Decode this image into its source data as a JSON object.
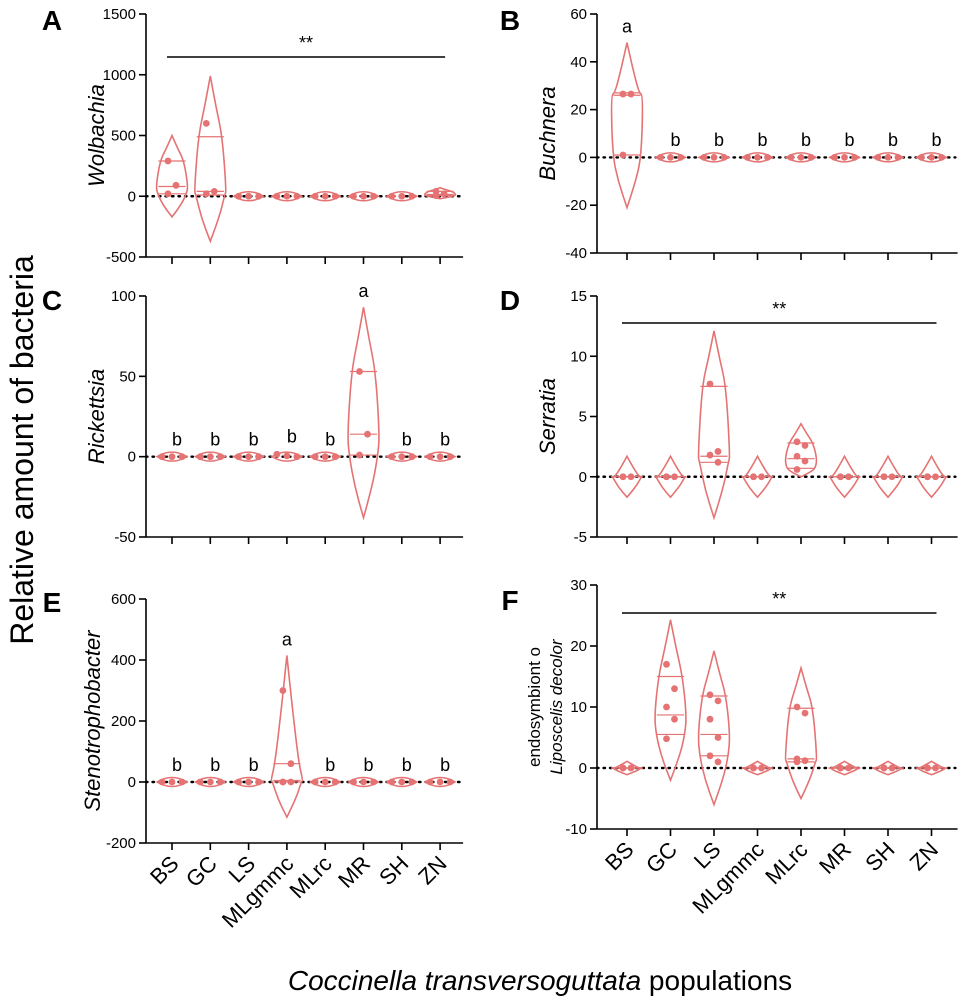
{
  "figure": {
    "y_label": "Relative amount of bacteria",
    "x_label_italic": "Coccinella transversoguttata",
    "x_label_rest": " populations",
    "violin_color": "#e57373",
    "categories": [
      "BS",
      "GC",
      "LS",
      "MLgmmc",
      "MLrc",
      "MR",
      "SH",
      "ZN"
    ]
  },
  "chart_data": [
    {
      "panel": "A",
      "type": "violin",
      "ylabel": "Wolbachia",
      "ylabel_italic": "Wolbachia",
      "ylim": [
        -500,
        1500
      ],
      "ticks": [
        1500,
        1000,
        500,
        0,
        -500
      ],
      "bracket": "**",
      "groups": [
        {
          "category": "BS",
          "median": 80,
          "q1": 20,
          "q3": 290,
          "min": -170,
          "max": 500,
          "points": [
            290,
            90,
            20
          ]
        },
        {
          "category": "GC",
          "median": 40,
          "q1": 10,
          "q3": 490,
          "min": -370,
          "max": 990,
          "points": [
            600,
            40,
            20
          ]
        },
        {
          "category": "LS",
          "median": 0,
          "q1": 0,
          "q3": 0,
          "min": -10,
          "max": 10,
          "points": [
            0,
            0,
            0
          ]
        },
        {
          "category": "MLgmmc",
          "median": 0,
          "q1": 0,
          "q3": 0,
          "min": -10,
          "max": 10,
          "points": [
            0,
            0,
            0
          ]
        },
        {
          "category": "MLrc",
          "median": 0,
          "q1": 0,
          "q3": 0,
          "min": -10,
          "max": 10,
          "points": [
            0,
            0,
            0
          ]
        },
        {
          "category": "MR",
          "median": 0,
          "q1": 0,
          "q3": 0,
          "min": -10,
          "max": 10,
          "points": [
            0,
            0,
            0
          ]
        },
        {
          "category": "SH",
          "median": 0,
          "q1": 0,
          "q3": 0,
          "min": -10,
          "max": 10,
          "points": [
            0,
            0,
            0
          ]
        },
        {
          "category": "ZN",
          "median": 15,
          "q1": 5,
          "q3": 40,
          "min": -20,
          "max": 70,
          "points": [
            40,
            20,
            5
          ]
        }
      ]
    },
    {
      "panel": "B",
      "type": "violin",
      "ylabel": "Buchnera",
      "ylabel_italic": "Buchnera",
      "ylim": [
        -40,
        60
      ],
      "ticks": [
        60,
        40,
        20,
        0,
        -20,
        -40
      ],
      "groups": [
        {
          "category": "BS",
          "median": 26,
          "q1": 1,
          "q3": 27,
          "min": -21,
          "max": 48,
          "points": [
            26.5,
            26.5,
            1
          ],
          "letter": "a"
        },
        {
          "category": "GC",
          "median": 0,
          "q1": 0,
          "q3": 0,
          "min": -0.6,
          "max": 0.6,
          "points": [
            0,
            0,
            0
          ],
          "letter": "b"
        },
        {
          "category": "LS",
          "median": 0,
          "q1": 0,
          "q3": 0,
          "min": -0.6,
          "max": 0.6,
          "points": [
            0,
            0,
            0
          ],
          "letter": "b"
        },
        {
          "category": "MLgmmc",
          "median": 0,
          "q1": 0,
          "q3": 0,
          "min": -0.6,
          "max": 0.6,
          "points": [
            0,
            0,
            0
          ],
          "letter": "b"
        },
        {
          "category": "MLrc",
          "median": 0,
          "q1": 0,
          "q3": 0,
          "min": -0.6,
          "max": 0.6,
          "points": [
            0,
            0,
            0
          ],
          "letter": "b"
        },
        {
          "category": "MR",
          "median": 0,
          "q1": 0,
          "q3": 0,
          "min": -0.6,
          "max": 0.6,
          "points": [
            0,
            0,
            0
          ],
          "letter": "b"
        },
        {
          "category": "SH",
          "median": 0,
          "q1": 0,
          "q3": 0,
          "min": -0.6,
          "max": 0.6,
          "points": [
            0,
            0,
            0
          ],
          "letter": "b"
        },
        {
          "category": "ZN",
          "median": 0,
          "q1": 0,
          "q3": 0,
          "min": -0.6,
          "max": 0.6,
          "points": [
            0,
            0,
            0
          ],
          "letter": "b"
        }
      ]
    },
    {
      "panel": "C",
      "type": "violin",
      "ylabel": "Rickettsia",
      "ylabel_italic": "Rickettsia",
      "ylim": [
        -50,
        100
      ],
      "ticks": [
        100,
        50,
        0,
        -50
      ],
      "groups": [
        {
          "category": "BS",
          "median": 0,
          "q1": 0,
          "q3": 0,
          "min": -0.8,
          "max": 0.8,
          "points": [
            0,
            0,
            0
          ],
          "letter": "b"
        },
        {
          "category": "GC",
          "median": 0,
          "q1": 0,
          "q3": 0,
          "min": -0.8,
          "max": 0.8,
          "points": [
            0,
            0,
            0
          ],
          "letter": "b"
        },
        {
          "category": "LS",
          "median": 0,
          "q1": 0,
          "q3": 0,
          "min": -0.8,
          "max": 0.8,
          "points": [
            0,
            0,
            0
          ],
          "letter": "b"
        },
        {
          "category": "MLgmmc",
          "median": 0.5,
          "q1": 0,
          "q3": 1,
          "min": -0.8,
          "max": 2.5,
          "points": [
            1.5,
            0.5,
            0
          ],
          "letter": "b"
        },
        {
          "category": "MLrc",
          "median": 0,
          "q1": 0,
          "q3": 0,
          "min": -0.8,
          "max": 0.8,
          "points": [
            0,
            0,
            0
          ],
          "letter": "b"
        },
        {
          "category": "MR",
          "median": 14,
          "q1": 1,
          "q3": 53,
          "min": -38,
          "max": 93,
          "points": [
            53,
            14,
            1
          ],
          "letter": "a"
        },
        {
          "category": "SH",
          "median": 0,
          "q1": 0,
          "q3": 0,
          "min": -0.8,
          "max": 0.8,
          "points": [
            0,
            0,
            0
          ],
          "letter": "b"
        },
        {
          "category": "ZN",
          "median": 0,
          "q1": 0,
          "q3": 0,
          "min": -0.8,
          "max": 0.8,
          "points": [
            0,
            0,
            0
          ],
          "letter": "b"
        }
      ]
    },
    {
      "panel": "D",
      "type": "violin",
      "ylabel": "Serratia",
      "ylabel_italic": "Serratia",
      "ylim": [
        -5,
        15
      ],
      "ticks": [
        15,
        10,
        5,
        0,
        -5
      ],
      "bracket": "**",
      "groups": [
        {
          "category": "BS",
          "median": 0,
          "q1": 0,
          "q3": 0,
          "min": -1.7,
          "max": 1.7,
          "points": [
            0,
            0,
            0
          ]
        },
        {
          "category": "GC",
          "median": 0,
          "q1": 0,
          "q3": 0,
          "min": -1.7,
          "max": 1.7,
          "points": [
            0,
            0,
            0
          ]
        },
        {
          "category": "LS",
          "median": 1.7,
          "q1": 1.2,
          "q3": 7.5,
          "min": -3.4,
          "max": 12.1,
          "points": [
            7.7,
            2.1,
            1.8,
            1.2
          ]
        },
        {
          "category": "MLgmmc",
          "median": 0,
          "q1": 0,
          "q3": 0,
          "min": -1.7,
          "max": 1.7,
          "points": [
            0,
            0,
            0
          ]
        },
        {
          "category": "MLrc",
          "median": 1.5,
          "q1": 0.7,
          "q3": 2.8,
          "min": 0,
          "max": 4.4,
          "points": [
            2.9,
            2.6,
            1.7,
            1.3,
            0.6
          ]
        },
        {
          "category": "MR",
          "median": 0,
          "q1": 0,
          "q3": 0,
          "min": -1.7,
          "max": 1.7,
          "points": [
            0,
            0,
            0
          ]
        },
        {
          "category": "SH",
          "median": 0,
          "q1": 0,
          "q3": 0,
          "min": -1.7,
          "max": 1.7,
          "points": [
            0,
            0,
            0
          ]
        },
        {
          "category": "ZN",
          "median": 0,
          "q1": 0,
          "q3": 0,
          "min": -1.7,
          "max": 1.7,
          "points": [
            0,
            0,
            0
          ]
        }
      ]
    },
    {
      "panel": "E",
      "type": "violin",
      "ylabel": "Stenotrophobacter",
      "ylabel_italic": "Stenotrophobacter",
      "ylim": [
        -200,
        600
      ],
      "ticks": [
        600,
        400,
        200,
        0,
        -200
      ],
      "groups": [
        {
          "category": "BS",
          "median": 0,
          "q1": 0,
          "q3": 0,
          "min": -3,
          "max": 3,
          "points": [
            0,
            0,
            0
          ],
          "letter": "b"
        },
        {
          "category": "GC",
          "median": 0,
          "q1": 0,
          "q3": 0,
          "min": -3,
          "max": 3,
          "points": [
            0,
            0,
            0
          ],
          "letter": "b"
        },
        {
          "category": "LS",
          "median": 0,
          "q1": 0,
          "q3": 0,
          "min": -3,
          "max": 3,
          "points": [
            0,
            0,
            0
          ],
          "letter": "b"
        },
        {
          "category": "MLgmmc",
          "median": 5,
          "q1": 0,
          "q3": 60,
          "min": -115,
          "max": 415,
          "points": [
            300,
            60,
            0,
            0,
            0
          ],
          "letter": "a"
        },
        {
          "category": "MLrc",
          "median": 0,
          "q1": 0,
          "q3": 0,
          "min": -3,
          "max": 3,
          "points": [
            0,
            0,
            0
          ],
          "letter": "b"
        },
        {
          "category": "MR",
          "median": 0,
          "q1": 0,
          "q3": 0,
          "min": -3,
          "max": 3,
          "points": [
            0,
            0,
            0
          ],
          "letter": "b"
        },
        {
          "category": "SH",
          "median": 0,
          "q1": 0,
          "q3": 0,
          "min": -3,
          "max": 3,
          "points": [
            0,
            0,
            0
          ],
          "letter": "b"
        },
        {
          "category": "ZN",
          "median": 0,
          "q1": 0,
          "q3": 0,
          "min": -3,
          "max": 3,
          "points": [
            0,
            0,
            0
          ],
          "letter": "b"
        }
      ]
    },
    {
      "panel": "F",
      "type": "violin",
      "ylabel": "endosymbiont o Liposcelis decolor",
      "ylabel_line1": "endosymbiont o",
      "ylabel_line2": "Liposcelis decolor",
      "ylim": [
        -10,
        30
      ],
      "ticks": [
        30,
        20,
        10,
        0,
        -10
      ],
      "bracket": "**",
      "groups": [
        {
          "category": "BS",
          "median": 0,
          "q1": 0,
          "q3": 0,
          "min": -1.1,
          "max": 1.1,
          "points": [
            0,
            0,
            0
          ]
        },
        {
          "category": "GC",
          "median": 8.7,
          "q1": 5.5,
          "q3": 15,
          "min": -2,
          "max": 24.3,
          "points": [
            17,
            13,
            10,
            8,
            4.8
          ]
        },
        {
          "category": "LS",
          "median": 5.5,
          "q1": 2,
          "q3": 11.8,
          "min": -6,
          "max": 19.2,
          "points": [
            12,
            11,
            8,
            5,
            2,
            1
          ]
        },
        {
          "category": "MLgmmc",
          "median": 0,
          "q1": 0,
          "q3": 0,
          "min": -1.1,
          "max": 1.1,
          "points": [
            0,
            0,
            0
          ]
        },
        {
          "category": "MLrc",
          "median": 1.5,
          "q1": 1,
          "q3": 9.8,
          "min": -5,
          "max": 16.4,
          "points": [
            10,
            9,
            1.5,
            1.2,
            1
          ]
        },
        {
          "category": "MR",
          "median": 0,
          "q1": 0,
          "q3": 0,
          "min": -1.1,
          "max": 1.1,
          "points": [
            0,
            0,
            0
          ]
        },
        {
          "category": "SH",
          "median": 0,
          "q1": 0,
          "q3": 0,
          "min": -1.1,
          "max": 1.1,
          "points": [
            0,
            0,
            0
          ]
        },
        {
          "category": "ZN",
          "median": 0,
          "q1": 0,
          "q3": 0,
          "min": -1.1,
          "max": 1.1,
          "points": [
            0,
            0,
            0
          ]
        }
      ]
    }
  ]
}
